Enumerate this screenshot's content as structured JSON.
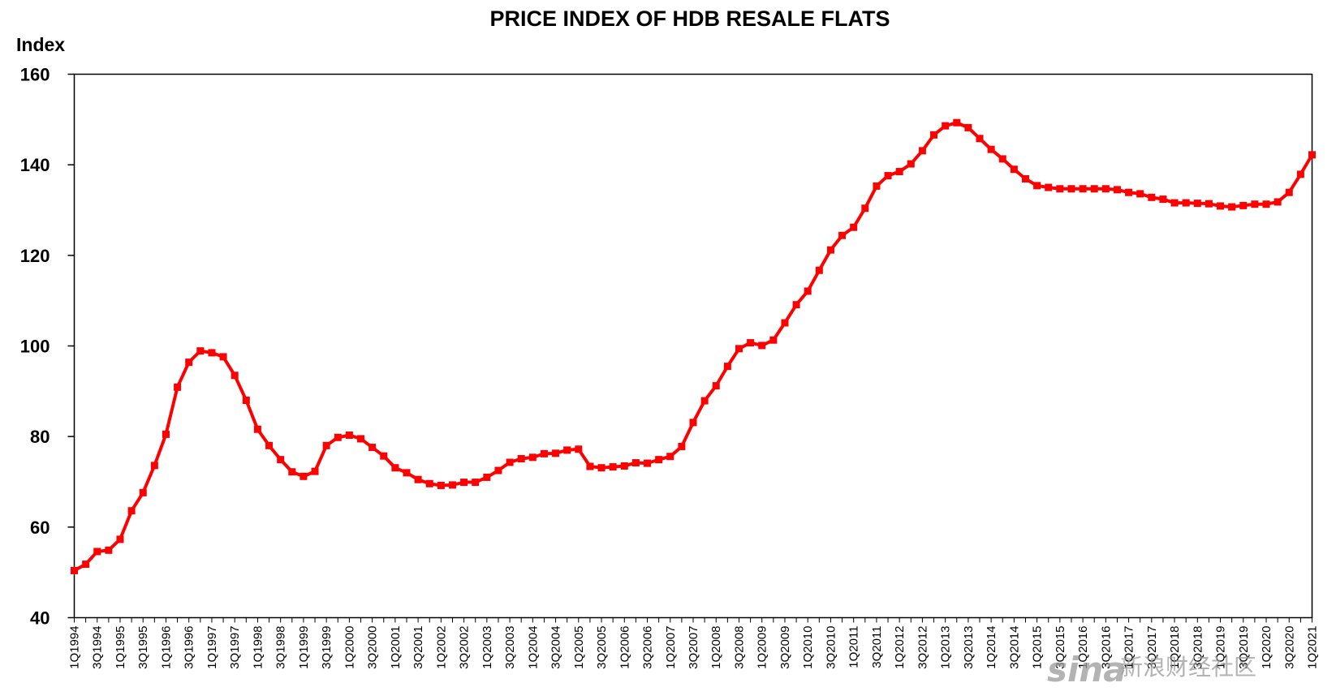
{
  "chart_data": {
    "type": "line",
    "title": "PRICE INDEX OF HDB RESALE FLATS",
    "ylabel": "Index",
    "xlabel": "",
    "ylim": [
      40,
      160
    ],
    "yticks": [
      40,
      60,
      80,
      100,
      120,
      140,
      160
    ],
    "grid": false,
    "line_color": "#ff0000",
    "marker": "square",
    "x": [
      "1Q1994",
      "2Q1994",
      "3Q1994",
      "4Q1994",
      "1Q1995",
      "2Q1995",
      "3Q1995",
      "4Q1995",
      "1Q1996",
      "2Q1996",
      "3Q1996",
      "4Q1996",
      "1Q1997",
      "2Q1997",
      "3Q1997",
      "4Q1997",
      "1Q1998",
      "2Q1998",
      "3Q1998",
      "4Q1998",
      "1Q1999",
      "2Q1999",
      "3Q1999",
      "4Q1999",
      "1Q2000",
      "2Q2000",
      "3Q2000",
      "4Q2000",
      "1Q2001",
      "2Q2001",
      "3Q2001",
      "4Q2001",
      "1Q2002",
      "2Q2002",
      "3Q2002",
      "4Q2002",
      "1Q2003",
      "2Q2003",
      "3Q2003",
      "4Q2003",
      "1Q2004",
      "2Q2004",
      "3Q2004",
      "4Q2004",
      "1Q2005",
      "2Q2005",
      "3Q2005",
      "4Q2005",
      "1Q2006",
      "2Q2006",
      "3Q2006",
      "4Q2006",
      "1Q2007",
      "2Q2007",
      "3Q2007",
      "4Q2007",
      "1Q2008",
      "2Q2008",
      "3Q2008",
      "4Q2008",
      "1Q2009",
      "2Q2009",
      "3Q2009",
      "4Q2009",
      "1Q2010",
      "2Q2010",
      "3Q2010",
      "4Q2010",
      "1Q2011",
      "2Q2011",
      "3Q2011",
      "4Q2011",
      "1Q2012",
      "2Q2012",
      "3Q2012",
      "4Q2012",
      "1Q2013",
      "2Q2013",
      "3Q2013",
      "4Q2013",
      "1Q2014",
      "2Q2014",
      "3Q2014",
      "4Q2014",
      "1Q2015",
      "2Q2015",
      "3Q2015",
      "4Q2015",
      "1Q2016",
      "2Q2016",
      "3Q2016",
      "4Q2016",
      "1Q2017",
      "2Q2017",
      "3Q2017",
      "4Q2017",
      "1Q2018",
      "2Q2018",
      "3Q2018",
      "4Q2018",
      "1Q2019",
      "2Q2019",
      "3Q2019",
      "4Q2019",
      "1Q2020",
      "2Q2020",
      "3Q2020",
      "4Q2020",
      "1Q2021"
    ],
    "x_tick_labels": [
      "1Q1994",
      "3Q1994",
      "1Q1995",
      "3Q1995",
      "1Q1996",
      "3Q1996",
      "1Q1997",
      "3Q1997",
      "1Q1998",
      "3Q1998",
      "1Q1999",
      "3Q1999",
      "1Q2000",
      "3Q2000",
      "1Q2001",
      "3Q2001",
      "1Q2002",
      "3Q2002",
      "1Q2003",
      "3Q2003",
      "1Q2004",
      "3Q2004",
      "1Q2005",
      "3Q2005",
      "1Q2006",
      "3Q2006",
      "1Q2007",
      "3Q2007",
      "1Q2008",
      "3Q2008",
      "1Q2009",
      "3Q2009",
      "1Q2010",
      "3Q2010",
      "1Q2011",
      "3Q2011",
      "1Q2012",
      "3Q2012",
      "1Q2013",
      "3Q2013",
      "1Q2014",
      "3Q2014",
      "1Q2015",
      "3Q2015",
      "1Q2016",
      "3Q2016",
      "1Q2017",
      "3Q2017",
      "1Q2018",
      "3Q2018",
      "1Q2019",
      "3Q2019",
      "1Q2020",
      "3Q2020",
      "1Q2021"
    ],
    "series": [
      {
        "values": [
          50.4,
          51.8,
          54.6,
          54.9,
          57.3,
          63.6,
          67.6,
          73.6,
          80.5,
          90.9,
          96.4,
          98.9,
          98.5,
          97.6,
          93.5,
          88.0,
          81.6,
          78.0,
          74.9,
          72.2,
          71.2,
          72.3,
          78.0,
          79.8,
          80.3,
          79.5,
          77.6,
          75.7,
          73.1,
          72.0,
          70.5,
          69.6,
          69.2,
          69.3,
          69.9,
          69.9,
          71.0,
          72.5,
          74.3,
          75.1,
          75.4,
          76.2,
          76.3,
          77.0,
          77.2,
          73.4,
          73.1,
          73.3,
          73.5,
          74.2,
          74.1,
          74.9,
          75.6,
          77.8,
          83.1,
          87.9,
          91.2,
          95.5,
          99.4,
          100.7,
          100.1,
          101.3,
          105.1,
          109.1,
          112.1,
          116.7,
          121.2,
          124.4,
          126.2,
          130.4,
          135.3,
          137.6,
          138.5,
          140.2,
          143.1,
          146.6,
          148.6,
          149.3,
          148.2,
          145.8,
          143.4,
          141.3,
          139.0,
          136.9,
          135.4,
          135.0,
          134.7,
          134.7,
          134.7,
          134.7,
          134.7,
          134.5,
          133.9,
          133.6,
          132.8,
          132.4,
          131.6,
          131.6,
          131.5,
          131.4,
          130.9,
          130.7,
          131.0,
          131.3,
          131.3,
          131.8,
          133.9,
          137.9,
          142.2
        ]
      }
    ]
  },
  "watermark": {
    "brand": "sina",
    "text": "新浪财经社区"
  }
}
